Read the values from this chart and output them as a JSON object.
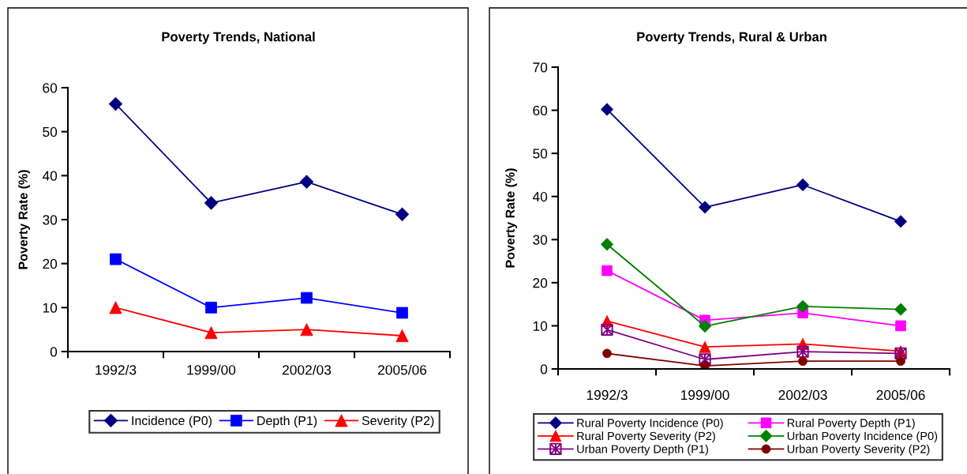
{
  "chart_data": [
    {
      "type": "line",
      "title": "Poverty Trends, National",
      "ylabel": "Poverty Rate (%)",
      "categories": [
        "1992/3",
        "1999/00",
        "2002/03",
        "2005/06"
      ],
      "ylim": [
        0,
        60
      ],
      "yticks": [
        0,
        10,
        20,
        30,
        40,
        50,
        60
      ],
      "grid": false,
      "legend": "bottom",
      "series": [
        {
          "name": "Incidence (P0)",
          "color": "#000080",
          "marker": "diamond",
          "values": [
            56.3,
            33.8,
            38.6,
            31.2
          ]
        },
        {
          "name": "Depth (P1)",
          "color": "#0000ff",
          "marker": "square",
          "values": [
            21.0,
            10.0,
            12.2,
            8.8
          ]
        },
        {
          "name": "Severity (P2)",
          "color": "#ff0000",
          "marker": "triangle",
          "values": [
            10.0,
            4.3,
            5.0,
            3.6
          ]
        }
      ]
    },
    {
      "type": "line",
      "title": "Poverty Trends, Rural & Urban",
      "ylabel": "Poverty Rate (%)",
      "categories": [
        "1992/3",
        "1999/00",
        "2002/03",
        "2005/06"
      ],
      "ylim": [
        0,
        70
      ],
      "yticks": [
        0,
        10,
        20,
        30,
        40,
        50,
        60,
        70
      ],
      "grid": false,
      "legend": "bottom",
      "series": [
        {
          "name": "Rural Poverty Incidence (P0)",
          "color": "#000080",
          "marker": "diamond",
          "values": [
            60.2,
            37.5,
            42.7,
            34.2
          ]
        },
        {
          "name": "Rural Poverty Depth (P1)",
          "color": "#ff00ff",
          "marker": "square",
          "values": [
            22.8,
            11.3,
            13.0,
            10.0
          ]
        },
        {
          "name": "Rural Poverty Severity (P2)",
          "color": "#ff0000",
          "marker": "triangle",
          "values": [
            11.1,
            5.1,
            5.8,
            4.1
          ]
        },
        {
          "name": "Urban Poverty Incidence (P0)",
          "color": "#008000",
          "marker": "diamond",
          "values": [
            28.9,
            9.9,
            14.5,
            13.8
          ]
        },
        {
          "name": "Urban Poverty Depth (P1)",
          "color": "#800080",
          "marker": "cross",
          "values": [
            9.1,
            2.2,
            4.0,
            3.6
          ]
        },
        {
          "name": "Urban Poverty Severity (P2)",
          "color": "#800000",
          "marker": "circle",
          "values": [
            3.6,
            0.7,
            1.8,
            1.8
          ]
        }
      ]
    }
  ]
}
